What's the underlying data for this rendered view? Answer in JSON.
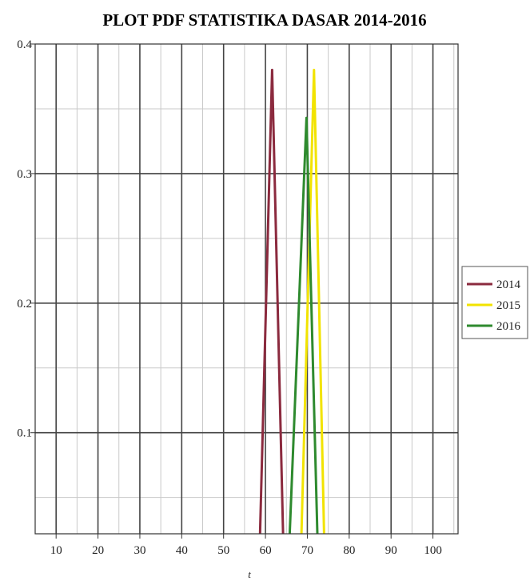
{
  "chart_data": {
    "type": "line",
    "title": "PLOT PDF STATISTIKA DASAR 2014-2016",
    "xlabel": "t",
    "ylabel": "",
    "xlim": [
      5,
      106
    ],
    "ylim": [
      0.022,
      0.4
    ],
    "xticks": [
      10,
      20,
      30,
      40,
      50,
      60,
      70,
      80,
      90,
      100
    ],
    "yticks": [
      0.1,
      0.2,
      0.3,
      0.4
    ],
    "grid": true,
    "legend": "right",
    "series": [
      {
        "name": "2014",
        "color": "#8b2a3e",
        "x": [
          58.7,
          61.6,
          64.2
        ],
        "y": [
          0.022,
          0.38,
          0.022
        ]
      },
      {
        "name": "2015",
        "color": "#f2e300",
        "x": [
          68.6,
          71.6,
          74.0
        ],
        "y": [
          0.022,
          0.38,
          0.022
        ]
      },
      {
        "name": "2016",
        "color": "#2e8a2e",
        "x": [
          65.8,
          69.8,
          72.4
        ],
        "y": [
          0.022,
          0.343,
          0.022
        ]
      }
    ]
  }
}
